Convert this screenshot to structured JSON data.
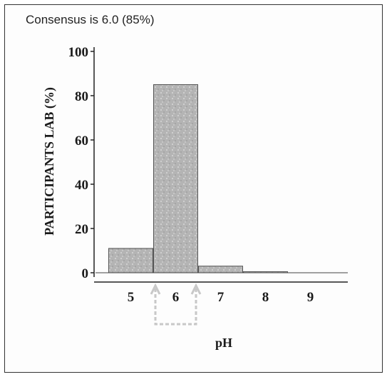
{
  "header": {
    "consensus": "Consensus is 6.0 (85%)"
  },
  "chart_data": {
    "type": "bar",
    "categories": [
      "5",
      "6",
      "7",
      "8",
      "9"
    ],
    "values": [
      11,
      85,
      3,
      0.5,
      0
    ],
    "title": "",
    "xlabel": "pH",
    "ylabel": "PARTICIPANTS LAB  (%)",
    "ylim": [
      0,
      100
    ],
    "yticks": [
      "0",
      "20",
      "40",
      "60",
      "80",
      "100"
    ],
    "highlight_category": "6",
    "grid": false,
    "bar_color": "#b4b4b4"
  }
}
